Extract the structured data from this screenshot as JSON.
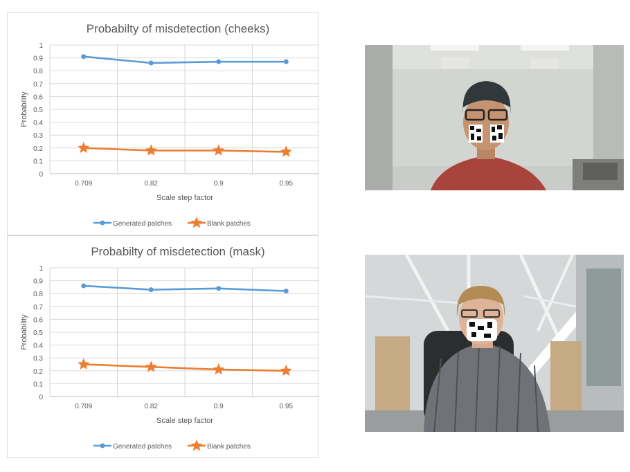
{
  "chart_data": [
    {
      "type": "line",
      "title": "Probabilty of misdetection (cheeks)",
      "xlabel": "Scale step factor",
      "ylabel": "Probability",
      "categories": [
        "0.709",
        "0.82",
        "0.9",
        "0.95"
      ],
      "ylim": [
        0,
        1
      ],
      "yticks": [
        "0",
        "0.1",
        "0.2",
        "0.3",
        "0.4",
        "0.5",
        "0.6",
        "0.7",
        "0.8",
        "0.9",
        "1"
      ],
      "grid": true,
      "legend_position": "bottom",
      "series": [
        {
          "name": "Generated patches",
          "values": [
            0.91,
            0.86,
            0.87,
            0.87
          ],
          "color": "#5b9bd5",
          "marker": "circle"
        },
        {
          "name": "Blank patches",
          "values": [
            0.2,
            0.18,
            0.18,
            0.17
          ],
          "color": "#ed7d31",
          "marker": "star"
        }
      ]
    },
    {
      "type": "line",
      "title": "Probabilty of misdetection (mask)",
      "xlabel": "Scale step factor",
      "ylabel": "Probability",
      "categories": [
        "0.709",
        "0.82",
        "0.9",
        "0.95"
      ],
      "ylim": [
        0,
        1
      ],
      "yticks": [
        "0",
        "0.1",
        "0.2",
        "0.3",
        "0.4",
        "0.5",
        "0.6",
        "0.7",
        "0.8",
        "0.9",
        "1"
      ],
      "grid": true,
      "legend_position": "bottom",
      "series": [
        {
          "name": "Generated patches",
          "values": [
            0.86,
            0.83,
            0.84,
            0.82
          ],
          "color": "#5b9bd5",
          "marker": "circle"
        },
        {
          "name": "Blank patches",
          "values": [
            0.25,
            0.23,
            0.21,
            0.2
          ],
          "color": "#ed7d31",
          "marker": "star"
        }
      ]
    }
  ]
}
